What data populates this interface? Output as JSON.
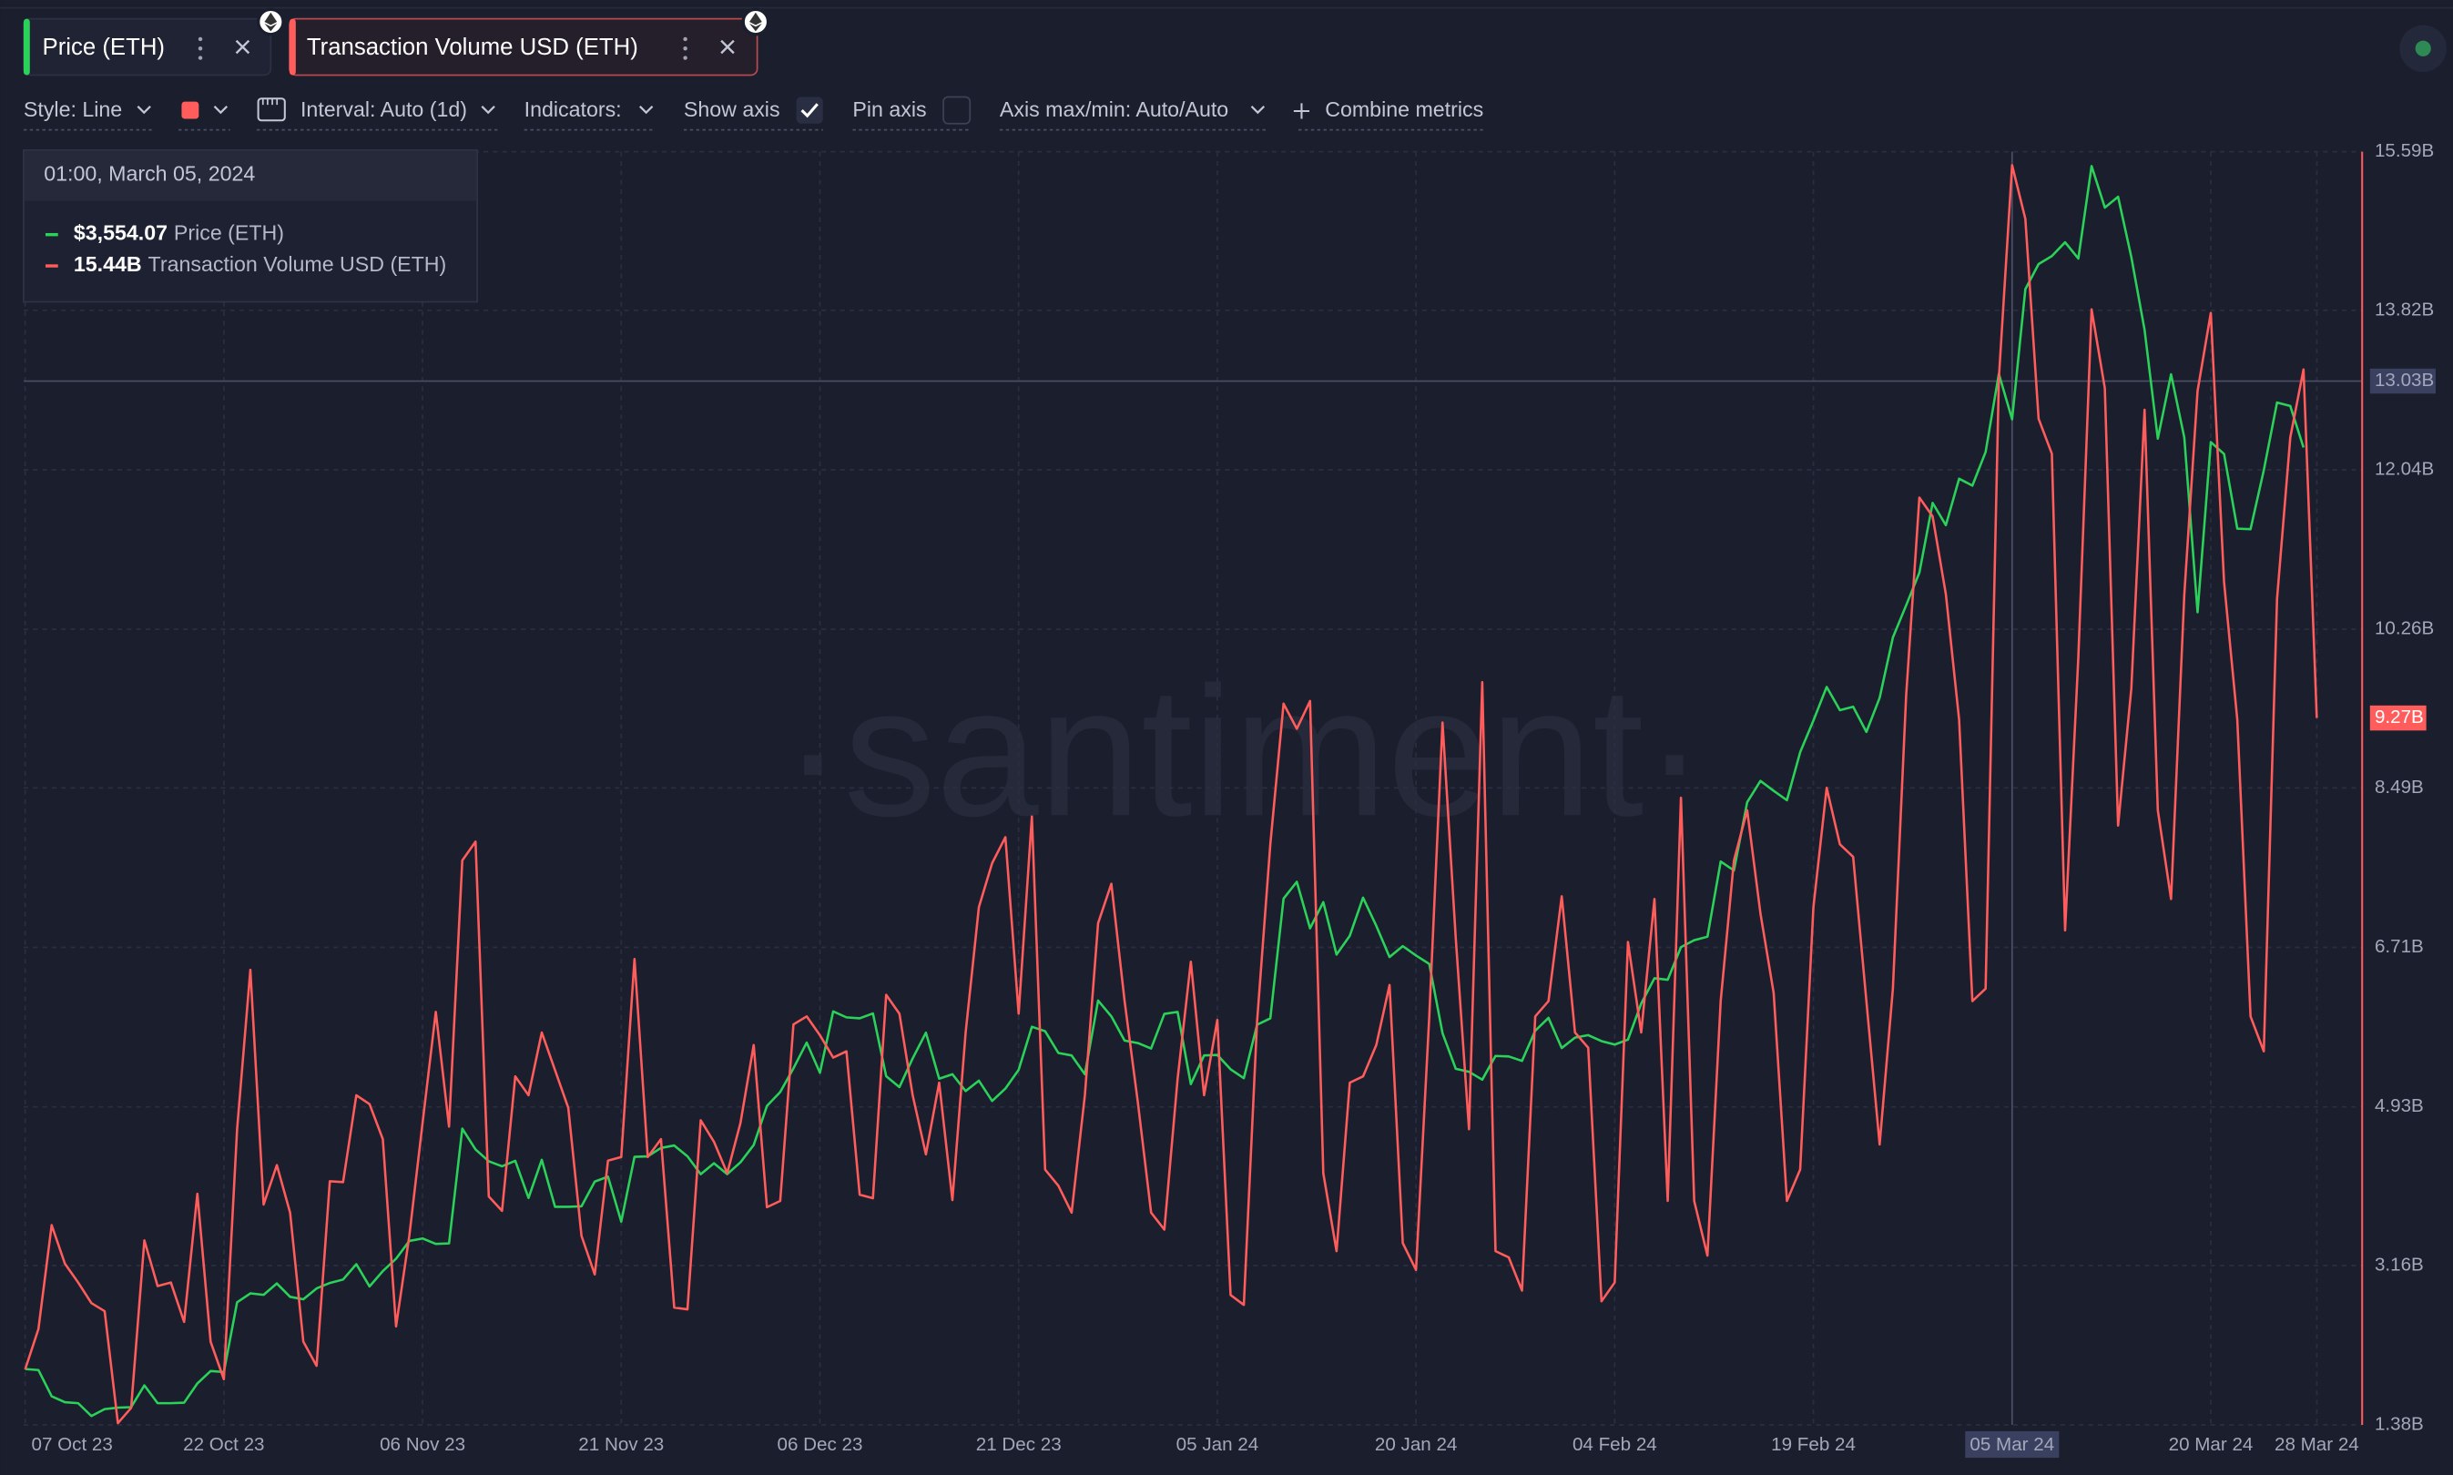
{
  "toolbar": {
    "style": "Style: Line",
    "interval": "Interval: Auto (1d)",
    "indicators": "Indicators:",
    "show_axis": "Show axis",
    "show_axis_checked": true,
    "pin_axis": "Pin axis",
    "axis_maxmin": "Axis max/min: Auto/Auto",
    "combine": "Combine metrics"
  },
  "watermark": "·santiment·",
  "chart_data": {
    "type": "line",
    "grid": true,
    "x": [
      "2023-10-07",
      "2023-10-08",
      "2023-10-09",
      "2023-10-10",
      "2023-10-11",
      "2023-10-12",
      "2023-10-13",
      "2023-10-14",
      "2023-10-15",
      "2023-10-16",
      "2023-10-17",
      "2023-10-18",
      "2023-10-19",
      "2023-10-20",
      "2023-10-21",
      "2023-10-22",
      "2023-10-23",
      "2023-10-24",
      "2023-10-25",
      "2023-10-26",
      "2023-10-27",
      "2023-10-28",
      "2023-10-29",
      "2023-10-30",
      "2023-10-31",
      "2023-11-01",
      "2023-11-02",
      "2023-11-03",
      "2023-11-04",
      "2023-11-05",
      "2023-11-06",
      "2023-11-07",
      "2023-11-08",
      "2023-11-09",
      "2023-11-10",
      "2023-11-11",
      "2023-11-12",
      "2023-11-13",
      "2023-11-14",
      "2023-11-15",
      "2023-11-16",
      "2023-11-17",
      "2023-11-18",
      "2023-11-19",
      "2023-11-20",
      "2023-11-21",
      "2023-11-22",
      "2023-11-23",
      "2023-11-24",
      "2023-11-25",
      "2023-11-26",
      "2023-11-27",
      "2023-11-28",
      "2023-11-29",
      "2023-11-30",
      "2023-12-01",
      "2023-12-02",
      "2023-12-03",
      "2023-12-04",
      "2023-12-05",
      "2023-12-06",
      "2023-12-07",
      "2023-12-08",
      "2023-12-09",
      "2023-12-10",
      "2023-12-11",
      "2023-12-12",
      "2023-12-13",
      "2023-12-14",
      "2023-12-15",
      "2023-12-16",
      "2023-12-17",
      "2023-12-18",
      "2023-12-19",
      "2023-12-20",
      "2023-12-21",
      "2023-12-22",
      "2023-12-23",
      "2023-12-24",
      "2023-12-25",
      "2023-12-26",
      "2023-12-27",
      "2023-12-28",
      "2023-12-29",
      "2023-12-30",
      "2023-12-31",
      "2024-01-01",
      "2024-01-02",
      "2024-01-03",
      "2024-01-04",
      "2024-01-05",
      "2024-01-06",
      "2024-01-07",
      "2024-01-08",
      "2024-01-09",
      "2024-01-10",
      "2024-01-11",
      "2024-01-12",
      "2024-01-13",
      "2024-01-14",
      "2024-01-15",
      "2024-01-16",
      "2024-01-17",
      "2024-01-18",
      "2024-01-19",
      "2024-01-20",
      "2024-01-21",
      "2024-01-22",
      "2024-01-23",
      "2024-01-24",
      "2024-01-25",
      "2024-01-26",
      "2024-01-27",
      "2024-01-28",
      "2024-01-29",
      "2024-01-30",
      "2024-01-31",
      "2024-02-01",
      "2024-02-02",
      "2024-02-03",
      "2024-02-04",
      "2024-02-05",
      "2024-02-06",
      "2024-02-07",
      "2024-02-08",
      "2024-02-09",
      "2024-02-10",
      "2024-02-11",
      "2024-02-12",
      "2024-02-13",
      "2024-02-14",
      "2024-02-15",
      "2024-02-16",
      "2024-02-17",
      "2024-02-18",
      "2024-02-19",
      "2024-02-20",
      "2024-02-21",
      "2024-02-22",
      "2024-02-23",
      "2024-02-24",
      "2024-02-25",
      "2024-02-26",
      "2024-02-27",
      "2024-02-28",
      "2024-02-29",
      "2024-03-01",
      "2024-03-02",
      "2024-03-03",
      "2024-03-04",
      "2024-03-05",
      "2024-03-06",
      "2024-03-07",
      "2024-03-08",
      "2024-03-09",
      "2024-03-10",
      "2024-03-11",
      "2024-03-12",
      "2024-03-13",
      "2024-03-14",
      "2024-03-15",
      "2024-03-16",
      "2024-03-17",
      "2024-03-18",
      "2024-03-19",
      "2024-03-20",
      "2024-03-21",
      "2024-03-22",
      "2024-03-23",
      "2024-03-24",
      "2024-03-25",
      "2024-03-26",
      "2024-03-27",
      "2024-03-28"
    ],
    "xlim": [
      "2023-10-07",
      "2024-03-28"
    ],
    "xticks": [
      {
        "value": "2023-10-07",
        "label": "07 Oct 23"
      },
      {
        "value": "2023-10-22",
        "label": "22 Oct 23"
      },
      {
        "value": "2023-11-06",
        "label": "06 Nov 23"
      },
      {
        "value": "2023-11-21",
        "label": "21 Nov 23"
      },
      {
        "value": "2023-12-06",
        "label": "06 Dec 23"
      },
      {
        "value": "2023-12-21",
        "label": "21 Dec 23"
      },
      {
        "value": "2024-01-05",
        "label": "05 Jan 24"
      },
      {
        "value": "2024-01-20",
        "label": "20 Jan 24"
      },
      {
        "value": "2024-02-04",
        "label": "04 Feb 24"
      },
      {
        "value": "2024-02-19",
        "label": "19 Feb 24"
      },
      {
        "value": "2024-03-05",
        "label": "05 Mar 24"
      },
      {
        "value": "2024-03-20",
        "label": "20 Mar 24"
      },
      {
        "value": "2024-03-28",
        "label": "28 Mar 24"
      }
    ],
    "ylim": [
      1521,
      4095
    ],
    "y2lim": [
      1.38,
      15.59
    ],
    "y2ticks": [
      {
        "value": 1.38,
        "label": "1.38B"
      },
      {
        "value": 3.16,
        "label": "3.16B"
      },
      {
        "value": 4.93,
        "label": "4.93B"
      },
      {
        "value": 6.71,
        "label": "6.71B"
      },
      {
        "value": 8.49,
        "label": "8.49B"
      },
      {
        "value": 10.26,
        "label": "10.26B"
      },
      {
        "value": 12.04,
        "label": "12.04B"
      },
      {
        "value": 13.82,
        "label": "13.82B"
      },
      {
        "value": 15.59,
        "label": "15.59B"
      }
    ],
    "series": [
      {
        "name": "Price (ETH)",
        "color": "#2bd25a",
        "axis": "y",
        "values": [
          1634,
          1632,
          1579,
          1567,
          1565,
          1539,
          1553,
          1556,
          1557,
          1601,
          1565,
          1565,
          1566,
          1605,
          1630,
          1628,
          1769,
          1787,
          1784,
          1807,
          1780,
          1775,
          1797,
          1808,
          1815,
          1846,
          1801,
          1832,
          1857,
          1893,
          1898,
          1887,
          1888,
          2120,
          2078,
          2054,
          2044,
          2055,
          1980,
          2057,
          1962,
          1962,
          1963,
          2013,
          2023,
          1932,
          2063,
          2064,
          2081,
          2086,
          2064,
          2028,
          2050,
          2028,
          2052,
          2087,
          2166,
          2194,
          2242,
          2294,
          2233,
          2357,
          2345,
          2343,
          2353,
          2226,
          2204,
          2262,
          2314,
          2221,
          2230,
          2196,
          2217,
          2176,
          2201,
          2239,
          2326,
          2317,
          2273,
          2268,
          2230,
          2379,
          2347,
          2298,
          2293,
          2282,
          2352,
          2356,
          2210,
          2268,
          2269,
          2240,
          2222,
          2330,
          2343,
          2585,
          2619,
          2525,
          2578,
          2472,
          2510,
          2587,
          2530,
          2467,
          2489,
          2470,
          2453,
          2313,
          2241,
          2235,
          2219,
          2267,
          2266,
          2257,
          2318,
          2344,
          2283,
          2304,
          2309,
          2297,
          2290,
          2300,
          2373,
          2424,
          2421,
          2487,
          2501,
          2508,
          2660,
          2642,
          2780,
          2823,
          2803,
          2784,
          2881,
          2945,
          3013,
          2966,
          2973,
          2922,
          2991,
          3113,
          3178,
          3244,
          3385,
          3340,
          3434,
          3420,
          3488,
          3646,
          3554.07,
          3817,
          3868,
          3884,
          3912,
          3879,
          4066,
          3982,
          4004,
          3882,
          3735,
          3515,
          3645,
          3517,
          3164,
          3508,
          3484,
          3333,
          3332,
          3451,
          3588,
          3581,
          3497,
          null
        ]
      },
      {
        "name": "Transaction Volume USD (ETH)",
        "color": "#ff5c5c",
        "axis": "y2",
        "last_value_label": "9.27B",
        "values": [
          2.0,
          2.45,
          3.61,
          3.18,
          2.97,
          2.74,
          2.65,
          1.4,
          1.57,
          3.44,
          2.93,
          2.97,
          2.53,
          3.96,
          2.31,
          1.89,
          4.68,
          6.46,
          3.84,
          4.28,
          3.75,
          2.31,
          2.04,
          4.1,
          4.09,
          5.06,
          4.96,
          4.57,
          2.48,
          3.49,
          4.75,
          5.99,
          4.71,
          7.68,
          7.89,
          3.93,
          3.77,
          5.27,
          5.06,
          5.76,
          5.34,
          4.92,
          3.49,
          3.06,
          4.33,
          4.37,
          6.58,
          4.37,
          4.57,
          2.69,
          2.67,
          4.78,
          4.54,
          4.19,
          4.75,
          5.62,
          3.81,
          3.88,
          5.85,
          5.94,
          5.73,
          5.48,
          5.55,
          3.95,
          3.91,
          6.18,
          5.97,
          5.06,
          4.4,
          5.2,
          3.89,
          5.76,
          7.16,
          7.65,
          7.94,
          5.97,
          8.17,
          4.23,
          4.05,
          3.75,
          5.06,
          6.98,
          7.42,
          6.11,
          4.98,
          3.75,
          3.56,
          5.24,
          6.55,
          5.06,
          5.9,
          2.83,
          2.72,
          5.88,
          7.86,
          9.43,
          9.15,
          9.46,
          4.19,
          3.32,
          5.2,
          5.27,
          5.62,
          6.29,
          3.41,
          3.11,
          5.94,
          9.22,
          6.81,
          4.68,
          9.67,
          3.32,
          3.25,
          2.88,
          5.94,
          6.11,
          7.28,
          5.76,
          5.59,
          2.76,
          2.97,
          6.77,
          5.76,
          7.25,
          3.88,
          8.38,
          3.88,
          3.27,
          6.11,
          7.68,
          8.24,
          7.09,
          6.2,
          3.88,
          4.23,
          7.16,
          8.49,
          7.86,
          7.72,
          6.11,
          4.51,
          6.25,
          9.52,
          11.73,
          11.52,
          10.65,
          9.25,
          6.11,
          6.25,
          13.06,
          15.44,
          14.84,
          12.61,
          12.22,
          6.9,
          9.95,
          13.83,
          12.95,
          8.07,
          9.6,
          12.71,
          8.24,
          7.25,
          10.65,
          12.92,
          13.79,
          10.79,
          9.25,
          5.94,
          5.55,
          10.6,
          12.4,
          13.16,
          9.27
        ]
      }
    ],
    "crosshair": {
      "x": "2024-03-05",
      "y2": 13.03,
      "y2_label": "13.03B"
    },
    "tooltip": {
      "title": "01:00, March 05, 2024",
      "value_labels": [
        "$3,554.07",
        "15.44B"
      ]
    }
  }
}
